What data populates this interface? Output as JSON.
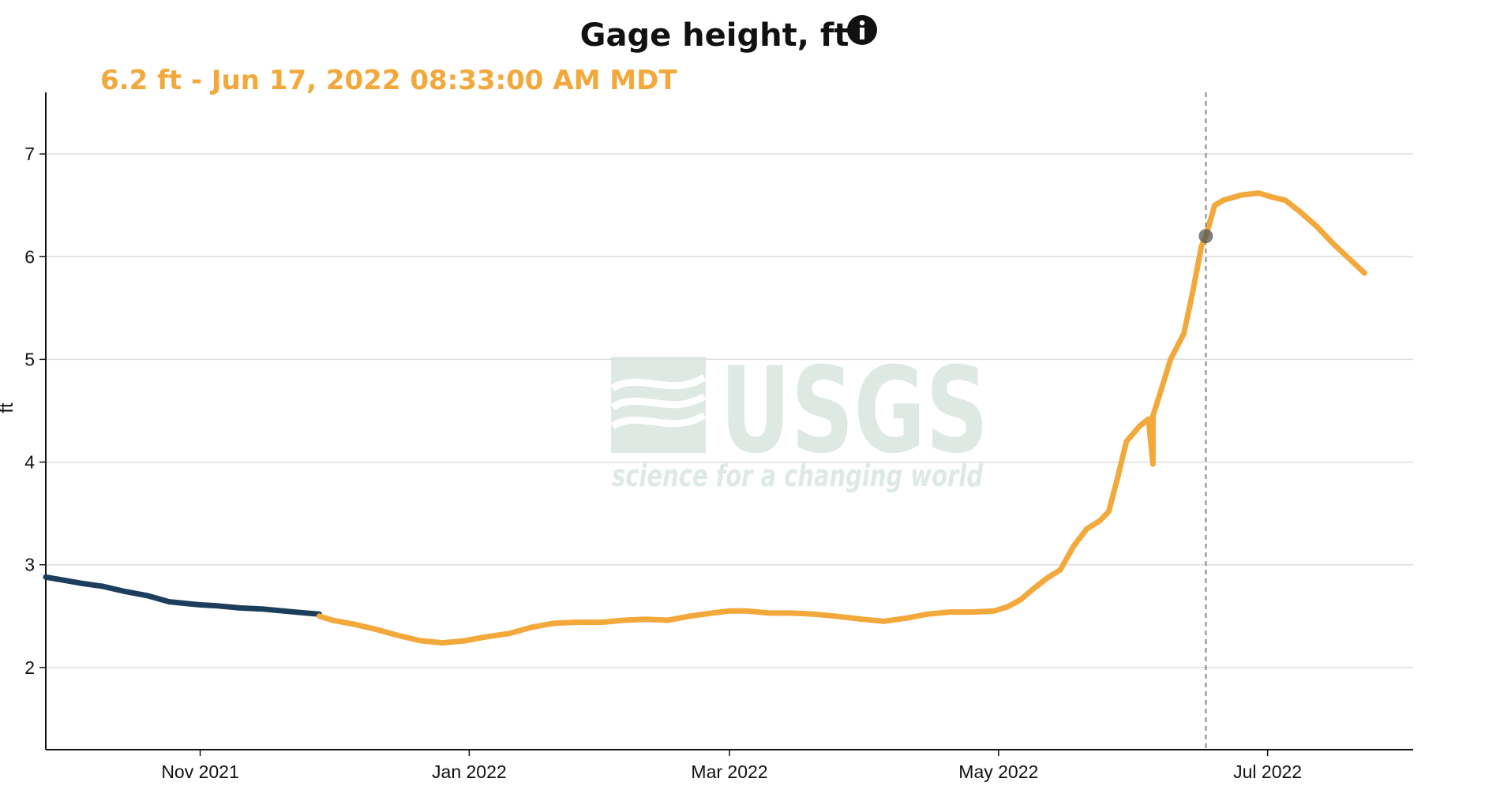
{
  "chart_data": {
    "type": "line",
    "title": "Gage height, ft",
    "info_icon": "info-icon",
    "readout": "6.2 ft - Jun 17, 2022 08:33:00 AM MDT",
    "readout_marker": {
      "x": "2022-06-17",
      "y": 6.2
    },
    "ylabel": "ft",
    "ylim": [
      1.2,
      7.6
    ],
    "yticks": [
      2,
      3,
      4,
      5,
      6,
      7
    ],
    "xlim": [
      "2021-09-27",
      "2022-08-03"
    ],
    "xticks": [
      {
        "date": "2021-11-01",
        "label": "Nov 2021"
      },
      {
        "date": "2022-01-01",
        "label": "Jan 2022"
      },
      {
        "date": "2022-03-01",
        "label": "Mar 2022"
      },
      {
        "date": "2022-05-01",
        "label": "May 2022"
      },
      {
        "date": "2022-07-01",
        "label": "Jul 2022"
      }
    ],
    "grid": true,
    "watermark": {
      "logo": "USGS",
      "tagline": "science for a changing world"
    },
    "colors": {
      "approved": "#1c3e5c",
      "provisional": "#f3a83b",
      "marker": "#555555",
      "grid": "#dddddd"
    },
    "series": [
      {
        "status": "approved",
        "points": [
          [
            "2021-09-27",
            2.88
          ],
          [
            "2021-10-01",
            2.85
          ],
          [
            "2021-10-05",
            2.82
          ],
          [
            "2021-10-10",
            2.79
          ],
          [
            "2021-10-15",
            2.74
          ],
          [
            "2021-10-20",
            2.7
          ],
          [
            "2021-10-25",
            2.64
          ],
          [
            "2021-11-01",
            2.61
          ],
          [
            "2021-11-05",
            2.6
          ],
          [
            "2021-11-10",
            2.58
          ],
          [
            "2021-11-15",
            2.57
          ],
          [
            "2021-11-20",
            2.55
          ],
          [
            "2021-11-25",
            2.53
          ],
          [
            "2021-11-28",
            2.52
          ]
        ]
      },
      {
        "status": "provisional",
        "points": [
          [
            "2021-11-28",
            2.5
          ],
          [
            "2021-12-01",
            2.46
          ],
          [
            "2021-12-06",
            2.42
          ],
          [
            "2021-12-11",
            2.37
          ],
          [
            "2021-12-16",
            2.31
          ],
          [
            "2021-12-21",
            2.26
          ],
          [
            "2021-12-26",
            2.24
          ],
          [
            "2021-12-31",
            2.26
          ],
          [
            "2022-01-05",
            2.3
          ],
          [
            "2022-01-10",
            2.33
          ],
          [
            "2022-01-15",
            2.39
          ],
          [
            "2022-01-20",
            2.43
          ],
          [
            "2022-01-25",
            2.44
          ],
          [
            "2022-01-31",
            2.44
          ],
          [
            "2022-02-05",
            2.46
          ],
          [
            "2022-02-10",
            2.47
          ],
          [
            "2022-02-15",
            2.46
          ],
          [
            "2022-02-20",
            2.5
          ],
          [
            "2022-02-25",
            2.53
          ],
          [
            "2022-03-01",
            2.55
          ],
          [
            "2022-03-05",
            2.55
          ],
          [
            "2022-03-10",
            2.53
          ],
          [
            "2022-03-15",
            2.53
          ],
          [
            "2022-03-20",
            2.52
          ],
          [
            "2022-03-25",
            2.5
          ],
          [
            "2022-03-31",
            2.47
          ],
          [
            "2022-04-05",
            2.45
          ],
          [
            "2022-04-10",
            2.48
          ],
          [
            "2022-04-15",
            2.52
          ],
          [
            "2022-04-20",
            2.54
          ],
          [
            "2022-04-25",
            2.54
          ],
          [
            "2022-04-30",
            2.55
          ],
          [
            "2022-05-03",
            2.59
          ],
          [
            "2022-05-06",
            2.66
          ],
          [
            "2022-05-09",
            2.77
          ],
          [
            "2022-05-12",
            2.87
          ],
          [
            "2022-05-15",
            2.95
          ],
          [
            "2022-05-18",
            3.18
          ],
          [
            "2022-05-21",
            3.35
          ],
          [
            "2022-05-24",
            3.43
          ],
          [
            "2022-05-26",
            3.52
          ],
          [
            "2022-05-28",
            3.85
          ],
          [
            "2022-05-30",
            4.2
          ],
          [
            "2022-06-02",
            4.35
          ],
          [
            "2022-06-04",
            4.42
          ],
          [
            "2022-06-05",
            3.98
          ],
          [
            "2022-06-05",
            4.45
          ],
          [
            "2022-06-07",
            4.72
          ],
          [
            "2022-06-09",
            5.0
          ],
          [
            "2022-06-12",
            5.25
          ],
          [
            "2022-06-14",
            5.65
          ],
          [
            "2022-06-16",
            6.1
          ],
          [
            "2022-06-17",
            6.2
          ],
          [
            "2022-06-19",
            6.5
          ],
          [
            "2022-06-21",
            6.55
          ],
          [
            "2022-06-25",
            6.6
          ],
          [
            "2022-06-29",
            6.62
          ],
          [
            "2022-07-02",
            6.58
          ],
          [
            "2022-07-05",
            6.55
          ],
          [
            "2022-07-08",
            6.45
          ],
          [
            "2022-07-12",
            6.3
          ],
          [
            "2022-07-16",
            6.12
          ],
          [
            "2022-07-20",
            5.96
          ],
          [
            "2022-07-23",
            5.84
          ]
        ]
      }
    ]
  }
}
